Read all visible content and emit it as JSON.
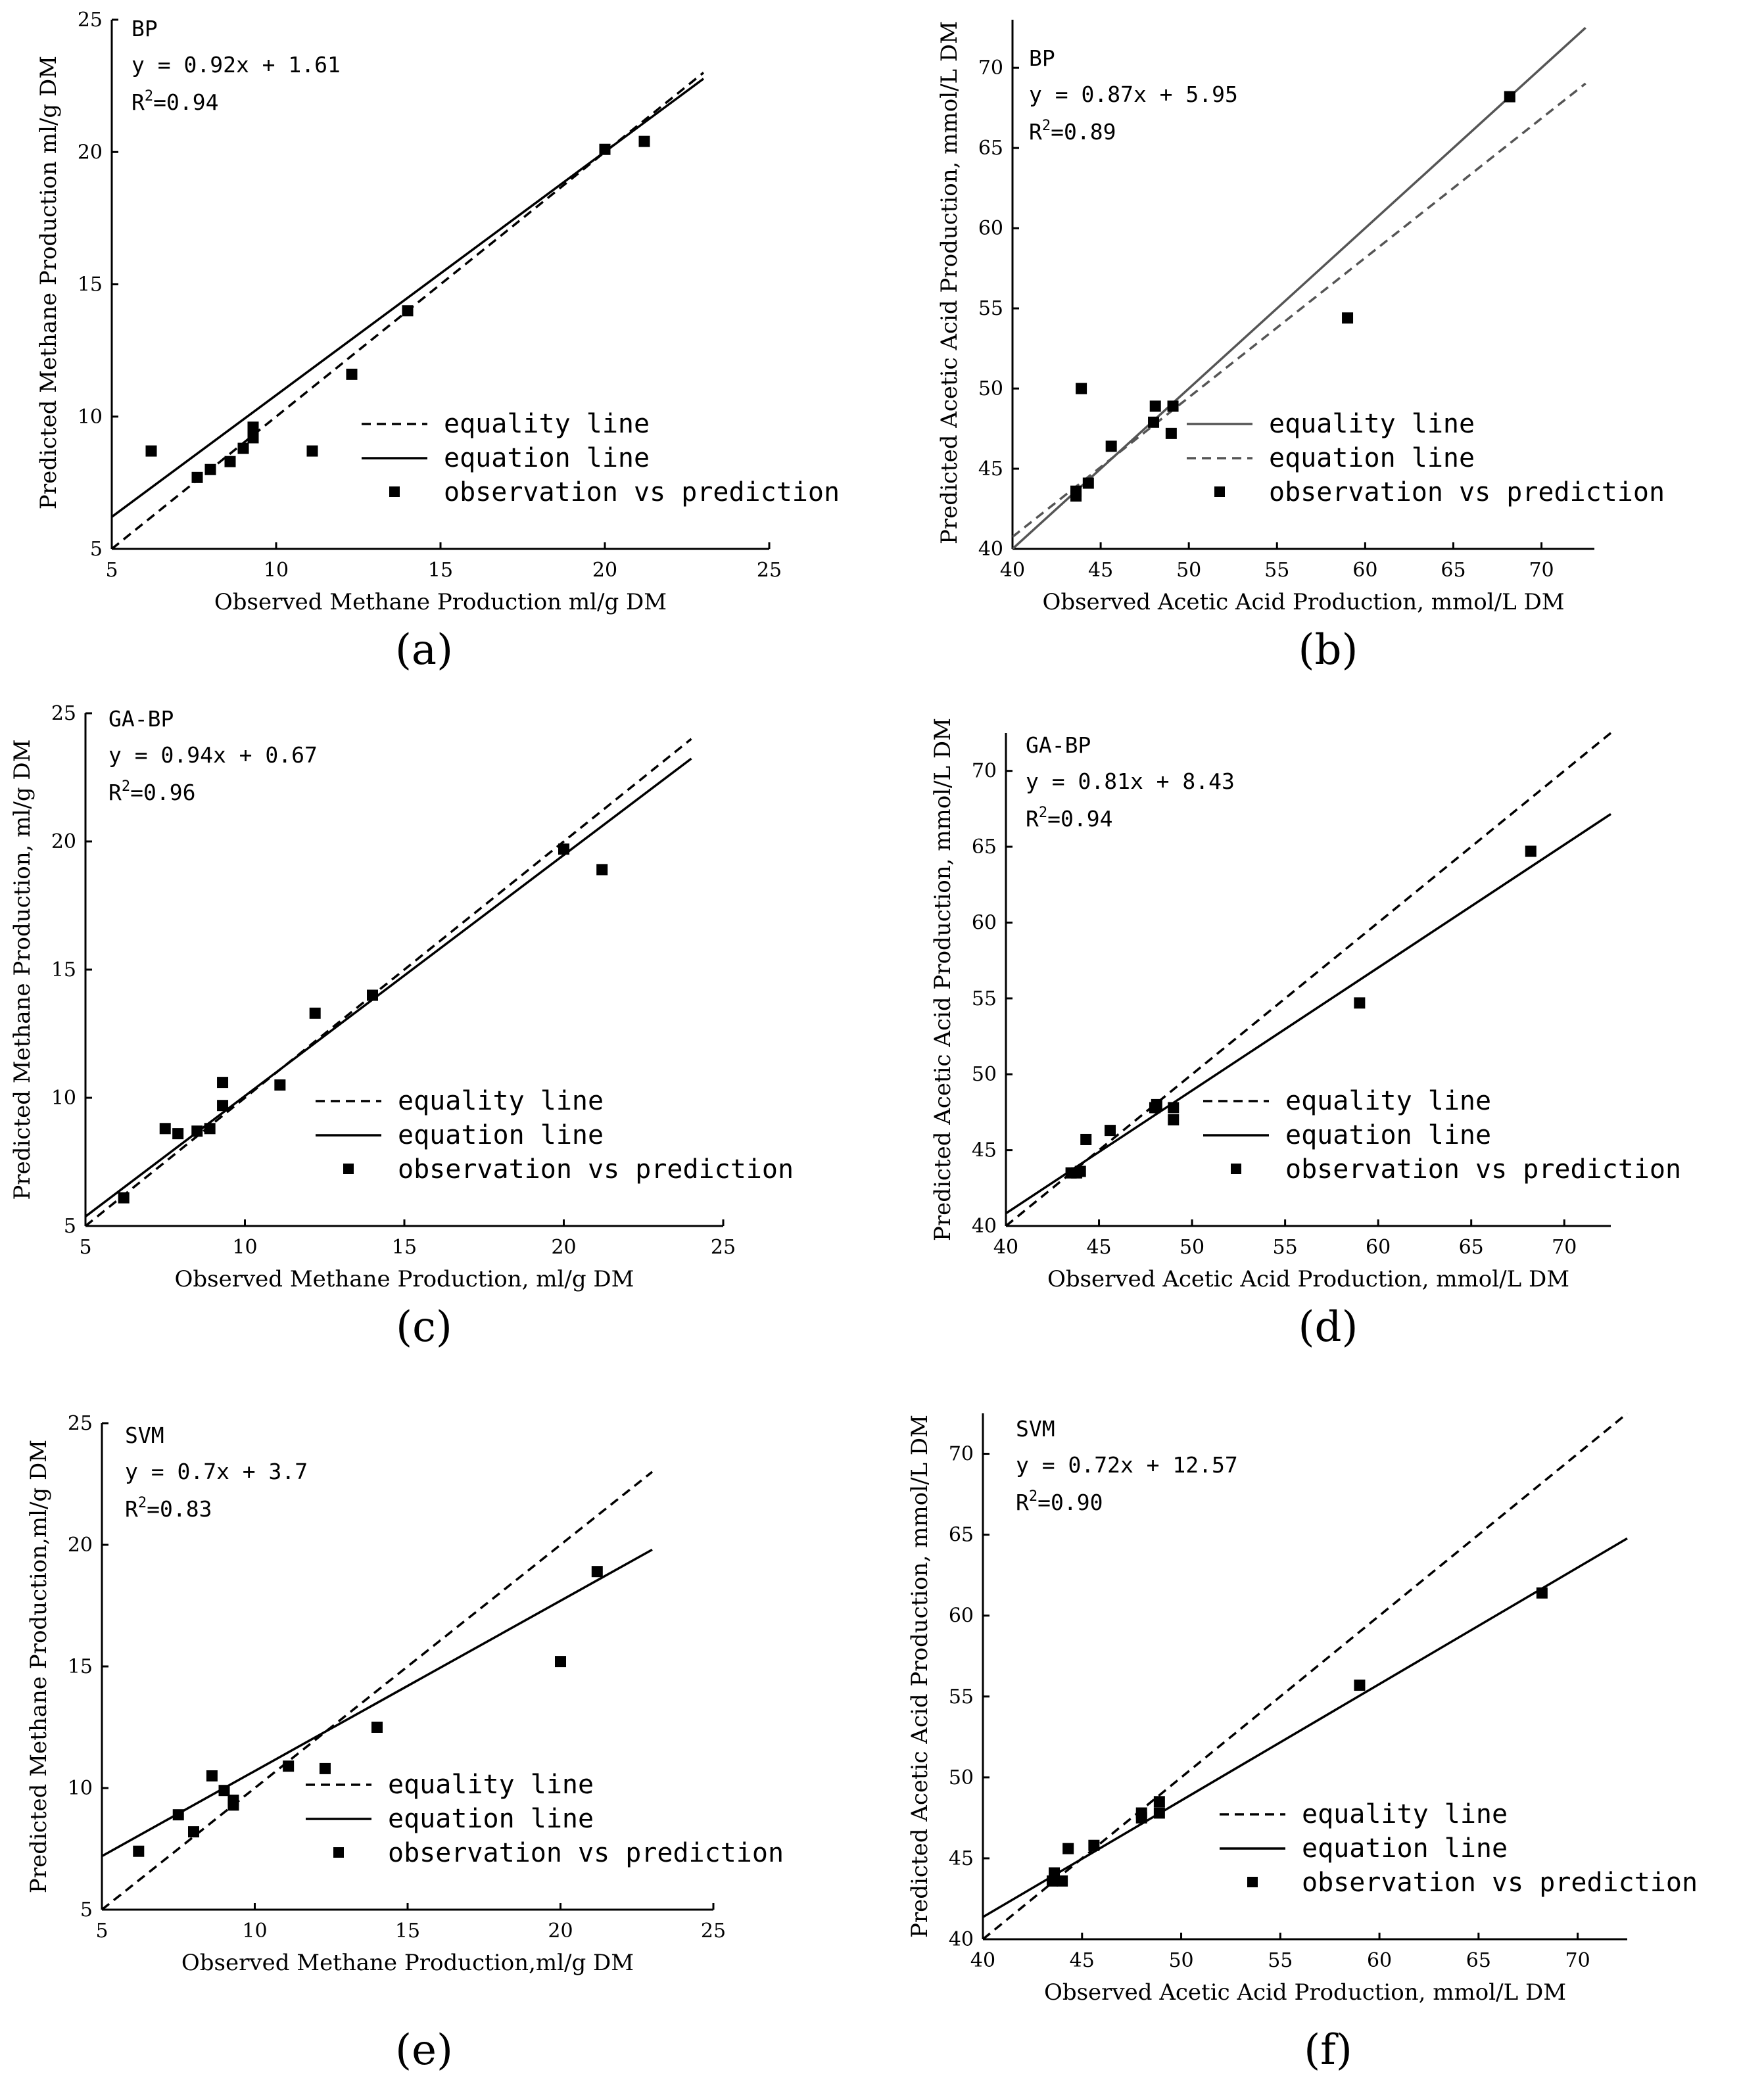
{
  "chart_data": [
    {
      "type": "scatter",
      "panel": "(a)",
      "model": "BP",
      "equation": "y = 0.92x + 1.61",
      "r2_prefix": "R",
      "r2_sup": "2",
      "r2_value": "=0.94",
      "xlabel": "Observed Methane Production ml/g DM",
      "ylabel": "Predicted Methane Production ml/g DM",
      "xlim": [
        5,
        25
      ],
      "ylim": [
        5,
        25
      ],
      "xticks": [
        5,
        10,
        15,
        20,
        25
      ],
      "yticks": [
        5,
        10,
        15,
        20,
        25
      ],
      "legend": [
        "equality line",
        "equation line",
        "observation vs prediction"
      ],
      "legend_position": "bottom-right",
      "equality_style": "dashed",
      "equation_style": "solid",
      "slope": 0.92,
      "intercept": 1.61,
      "line_range": [
        5,
        23
      ],
      "points": [
        [
          6.2,
          8.7
        ],
        [
          7.6,
          7.7
        ],
        [
          8.0,
          8.0
        ],
        [
          8.6,
          8.3
        ],
        [
          9.0,
          8.8
        ],
        [
          9.3,
          9.2
        ],
        [
          9.3,
          9.6
        ],
        [
          11.1,
          8.7
        ],
        [
          12.3,
          11.6
        ],
        [
          14.0,
          14.0
        ],
        [
          20.0,
          20.1
        ],
        [
          21.2,
          20.4
        ]
      ]
    },
    {
      "type": "scatter",
      "panel": "(b)",
      "model": "BP",
      "equation": "y = 0.87x + 5.95",
      "r2_prefix": "R",
      "r2_sup": "2",
      "r2_value": "=0.89",
      "xlabel": "Observed Acetic Acid Production, mmol/L DM",
      "ylabel": "Predicted Acetic Acid Production, mmol/L DM",
      "xlim": [
        40,
        73
      ],
      "ylim": [
        40,
        73
      ],
      "xticks": [
        40,
        45,
        50,
        55,
        60,
        65,
        70
      ],
      "yticks": [
        40,
        45,
        50,
        55,
        60,
        65,
        70
      ],
      "legend": [
        "equality line",
        "equation line",
        "observation vs prediction"
      ],
      "legend_position": "bottom-right",
      "equality_style": "solid",
      "equation_style": "dashed",
      "slope": 0.87,
      "intercept": 5.95,
      "line_range": [
        40,
        72.5
      ],
      "points": [
        [
          43.6,
          43.3
        ],
        [
          43.6,
          43.6
        ],
        [
          43.9,
          50.0
        ],
        [
          44.3,
          44.1
        ],
        [
          45.6,
          46.4
        ],
        [
          48.0,
          47.9
        ],
        [
          48.1,
          48.9
        ],
        [
          49.0,
          47.2
        ],
        [
          49.1,
          48.9
        ],
        [
          59.0,
          54.4
        ],
        [
          68.2,
          68.2
        ]
      ]
    },
    {
      "type": "scatter",
      "panel": "(c)",
      "model": "GA-BP",
      "equation": "y = 0.94x + 0.67",
      "r2_prefix": "R",
      "r2_sup": "2",
      "r2_value": "=0.96",
      "xlabel": "Observed Methane Production, ml/g DM",
      "ylabel": "Predicted Methane Production, ml/g DM",
      "xlim": [
        5,
        25
      ],
      "ylim": [
        5,
        25
      ],
      "xticks": [
        5,
        10,
        15,
        20,
        25
      ],
      "yticks": [
        5,
        10,
        15,
        20,
        25
      ],
      "legend": [
        "equality line",
        "equation line",
        "observation vs prediction"
      ],
      "legend_position": "bottom-right",
      "equality_style": "dashed",
      "equation_style": "solid",
      "slope": 0.94,
      "intercept": 0.67,
      "line_range": [
        5,
        24
      ],
      "points": [
        [
          6.2,
          6.1
        ],
        [
          7.5,
          8.8
        ],
        [
          7.9,
          8.6
        ],
        [
          8.5,
          8.7
        ],
        [
          8.9,
          8.8
        ],
        [
          9.3,
          9.7
        ],
        [
          9.3,
          10.6
        ],
        [
          11.1,
          10.5
        ],
        [
          12.2,
          13.3
        ],
        [
          14.0,
          14.0
        ],
        [
          20.0,
          19.7
        ],
        [
          21.2,
          18.9
        ]
      ]
    },
    {
      "type": "scatter",
      "panel": "(d)",
      "model": "GA-BP",
      "equation": "y = 0.81x + 8.43",
      "r2_prefix": "R",
      "r2_sup": "2",
      "r2_value": "=0.94",
      "xlabel": "Observed Acetic Acid Production, mmol/L DM",
      "ylabel": "Predicted Acetic Acid Production, mmol/L DM",
      "xlim": [
        40,
        72.5
      ],
      "ylim": [
        40,
        72.5
      ],
      "xticks": [
        40,
        45,
        50,
        55,
        60,
        65,
        70
      ],
      "yticks": [
        40,
        45,
        50,
        55,
        60,
        65,
        70
      ],
      "legend": [
        "equality line",
        "equation line",
        "observation vs prediction"
      ],
      "legend_position": "bottom-right",
      "equality_style": "dashed",
      "equation_style": "solid",
      "slope": 0.81,
      "intercept": 8.43,
      "line_range": [
        40,
        72.5
      ],
      "points": [
        [
          43.5,
          43.5
        ],
        [
          43.8,
          43.5
        ],
        [
          44.0,
          43.6
        ],
        [
          44.3,
          45.7
        ],
        [
          45.6,
          46.3
        ],
        [
          48.0,
          47.8
        ],
        [
          48.1,
          48.0
        ],
        [
          49.0,
          47.0
        ],
        [
          49.0,
          47.8
        ],
        [
          59.0,
          54.7
        ],
        [
          68.2,
          64.7
        ]
      ]
    },
    {
      "type": "scatter",
      "panel": "(e)",
      "model": "SVM",
      "equation": "y = 0.7x + 3.7",
      "r2_prefix": "R",
      "r2_sup": "2",
      "r2_value": "=0.83",
      "xlabel": "Observed Methane Production,ml/g DM",
      "ylabel": "Predicted Methane Production,ml/g DM",
      "xlim": [
        5,
        25
      ],
      "ylim": [
        5,
        25
      ],
      "xticks": [
        5,
        10,
        15,
        20,
        25
      ],
      "yticks": [
        5,
        10,
        15,
        20,
        25
      ],
      "legend": [
        "equality line",
        "equation line",
        "observation vs prediction"
      ],
      "legend_position": "bottom-right",
      "equality_style": "dashed",
      "equation_style": "solid",
      "slope": 0.7,
      "intercept": 3.7,
      "line_range": [
        5,
        23
      ],
      "points": [
        [
          6.2,
          7.4
        ],
        [
          7.5,
          8.9
        ],
        [
          8.0,
          8.2
        ],
        [
          8.6,
          10.5
        ],
        [
          9.0,
          9.9
        ],
        [
          9.3,
          9.3
        ],
        [
          9.3,
          9.5
        ],
        [
          11.1,
          10.9
        ],
        [
          12.3,
          10.8
        ],
        [
          14.0,
          12.5
        ],
        [
          20.0,
          15.2
        ],
        [
          21.2,
          18.9
        ]
      ]
    },
    {
      "type": "scatter",
      "panel": "(f)",
      "model": "SVM",
      "equation": "y = 0.72x + 12.57",
      "r2_prefix": "R",
      "r2_sup": "2",
      "r2_value": "=0.90",
      "xlabel": "Observed Acetic Acid Production, mmol/L DM",
      "ylabel": "Predicted Acetic Acid Production, mmol/L DM",
      "xlim": [
        40,
        72.5
      ],
      "ylim": [
        40,
        72.5
      ],
      "xticks": [
        40,
        45,
        50,
        55,
        60,
        65,
        70
      ],
      "yticks": [
        40,
        45,
        50,
        55,
        60,
        65,
        70
      ],
      "legend": [
        "equality line",
        "equation line",
        "observation vs prediction"
      ],
      "legend_position": "bottom-right",
      "equality_style": "dashed",
      "equation_style": "solid",
      "slope": 0.72,
      "intercept": 12.57,
      "line_range": [
        40,
        72.5
      ],
      "points": [
        [
          43.5,
          43.6
        ],
        [
          43.6,
          44.1
        ],
        [
          44.0,
          43.6
        ],
        [
          44.3,
          45.6
        ],
        [
          45.6,
          45.8
        ],
        [
          48.0,
          47.5
        ],
        [
          48.0,
          47.8
        ],
        [
          48.9,
          47.8
        ],
        [
          48.9,
          48.5
        ],
        [
          59.0,
          55.7
        ],
        [
          68.2,
          61.4
        ]
      ]
    }
  ]
}
